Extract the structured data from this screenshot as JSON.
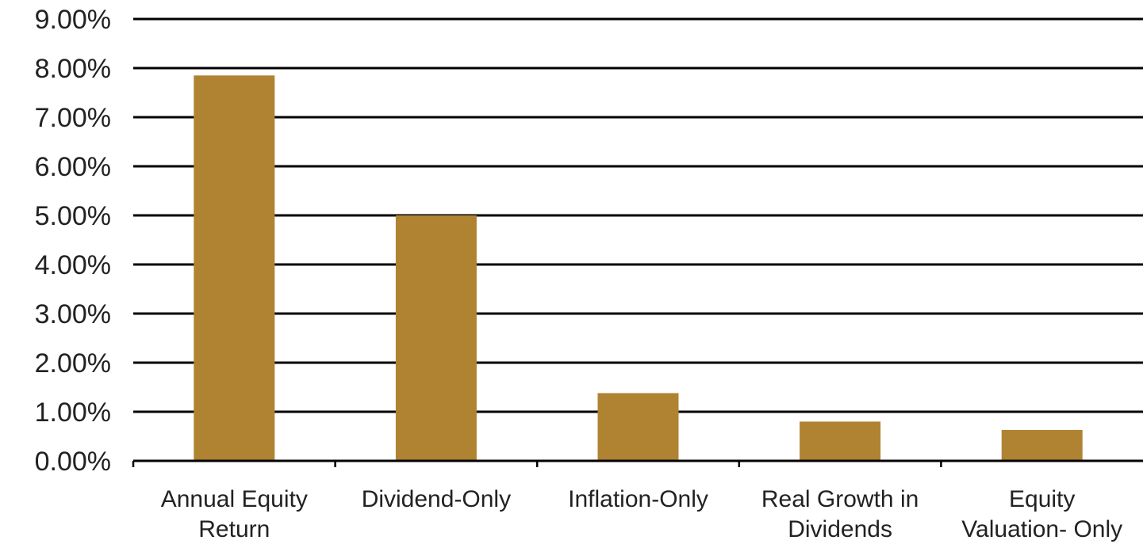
{
  "chart_data": {
    "type": "bar",
    "categories": [
      [
        "Annual Equity",
        "Return"
      ],
      [
        "Dividend-Only"
      ],
      [
        "Inflation-Only"
      ],
      [
        "Real Growth in",
        "Dividends"
      ],
      [
        "Equity",
        "Valuation- Only"
      ]
    ],
    "values": [
      7.85,
      5.0,
      1.38,
      0.8,
      0.63
    ],
    "yticks": [
      "0.00%",
      "1.00%",
      "2.00%",
      "3.00%",
      "4.00%",
      "5.00%",
      "6.00%",
      "7.00%",
      "8.00%",
      "9.00%"
    ],
    "ylim": [
      0,
      9
    ],
    "grid": true,
    "bar_color": "#B08332",
    "title": "",
    "xlabel": "",
    "ylabel": ""
  }
}
